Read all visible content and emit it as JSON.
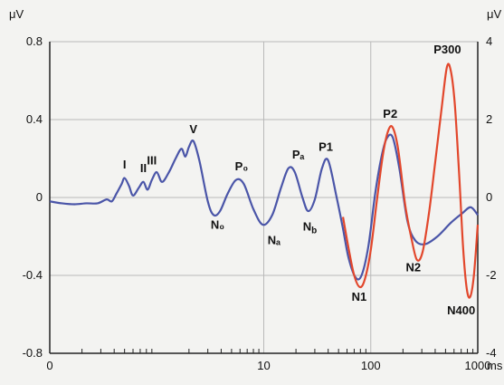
{
  "chart_data": {
    "type": "line",
    "x_scale": "log",
    "x_domain_ms": [
      0.1,
      1000
    ],
    "x_ticks": [
      {
        "value": 0.1,
        "label": "0"
      },
      {
        "value": 10,
        "label": "10"
      },
      {
        "value": 100,
        "label": "100"
      },
      {
        "value": 1000,
        "label": "1000"
      }
    ],
    "x_unit": "ms",
    "left_axis": {
      "unit": "μV",
      "ylim": [
        -0.8,
        0.8
      ],
      "ticks": [
        {
          "value": 0.8,
          "label": "0.8"
        },
        {
          "value": 0.4,
          "label": "0.4"
        },
        {
          "value": 0,
          "label": "0"
        },
        {
          "value": -0.4,
          "label": "-0.4"
        },
        {
          "value": -0.8,
          "label": "-0.8"
        }
      ]
    },
    "right_axis": {
      "unit": "μV",
      "ylim": [
        -4,
        4
      ],
      "ticks": [
        {
          "value": 4,
          "label": "4"
        },
        {
          "value": 2,
          "label": "2"
        },
        {
          "value": 0,
          "label": "0"
        },
        {
          "value": -2,
          "label": "-2"
        },
        {
          "value": -4,
          "label": "-4"
        }
      ]
    },
    "grid": true,
    "series": [
      {
        "color": "#4a55a8",
        "axis": "left",
        "points": [
          [
            0.1,
            -0.02
          ],
          [
            0.13,
            -0.03
          ],
          [
            0.17,
            -0.035
          ],
          [
            0.22,
            -0.03
          ],
          [
            0.28,
            -0.03
          ],
          [
            0.34,
            -0.01
          ],
          [
            0.38,
            -0.02
          ],
          [
            0.42,
            0.02
          ],
          [
            0.47,
            0.07
          ],
          [
            0.5,
            0.1
          ],
          [
            0.55,
            0.06
          ],
          [
            0.6,
            0.01
          ],
          [
            0.68,
            0.05
          ],
          [
            0.75,
            0.08
          ],
          [
            0.82,
            0.04
          ],
          [
            0.9,
            0.09
          ],
          [
            1.0,
            0.13
          ],
          [
            1.12,
            0.08
          ],
          [
            1.3,
            0.13
          ],
          [
            1.5,
            0.2
          ],
          [
            1.7,
            0.25
          ],
          [
            1.85,
            0.21
          ],
          [
            2.0,
            0.26
          ],
          [
            2.2,
            0.29
          ],
          [
            2.5,
            0.19
          ],
          [
            3.0,
            -0.02
          ],
          [
            3.4,
            -0.09
          ],
          [
            3.9,
            -0.07
          ],
          [
            4.6,
            0.02
          ],
          [
            5.5,
            0.09
          ],
          [
            6.5,
            0.07
          ],
          [
            8.0,
            -0.06
          ],
          [
            9.8,
            -0.14
          ],
          [
            12,
            -0.09
          ],
          [
            14.5,
            0.05
          ],
          [
            17,
            0.15
          ],
          [
            19.5,
            0.13
          ],
          [
            23,
            0.0
          ],
          [
            26,
            -0.07
          ],
          [
            30,
            -0.01
          ],
          [
            35,
            0.15
          ],
          [
            40,
            0.19
          ],
          [
            48,
            0.0
          ],
          [
            55,
            -0.16
          ],
          [
            62,
            -0.31
          ],
          [
            72,
            -0.41
          ],
          [
            82,
            -0.4
          ],
          [
            95,
            -0.25
          ],
          [
            110,
            0.02
          ],
          [
            125,
            0.2
          ],
          [
            140,
            0.3
          ],
          [
            160,
            0.31
          ],
          [
            185,
            0.15
          ],
          [
            220,
            -0.12
          ],
          [
            260,
            -0.22
          ],
          [
            320,
            -0.24
          ],
          [
            420,
            -0.2
          ],
          [
            560,
            -0.13
          ],
          [
            720,
            -0.08
          ],
          [
            860,
            -0.05
          ],
          [
            1000,
            -0.09
          ]
        ]
      },
      {
        "color": "#e2472c",
        "axis": "right",
        "points": [
          [
            55,
            -0.5
          ],
          [
            62,
            -1.3
          ],
          [
            70,
            -2.0
          ],
          [
            79,
            -2.3
          ],
          [
            88,
            -2.1
          ],
          [
            100,
            -1.35
          ],
          [
            115,
            0.0
          ],
          [
            130,
            1.1
          ],
          [
            145,
            1.7
          ],
          [
            160,
            1.8
          ],
          [
            180,
            1.25
          ],
          [
            210,
            -0.2
          ],
          [
            240,
            -1.05
          ],
          [
            270,
            -1.6
          ],
          [
            305,
            -1.4
          ],
          [
            350,
            -0.4
          ],
          [
            400,
            0.9
          ],
          [
            460,
            2.3
          ],
          [
            515,
            3.35
          ],
          [
            560,
            3.25
          ],
          [
            610,
            2.4
          ],
          [
            670,
            0.6
          ],
          [
            730,
            -1.3
          ],
          [
            790,
            -2.35
          ],
          [
            850,
            -2.55
          ],
          [
            920,
            -2.0
          ],
          [
            1000,
            -0.7
          ]
        ]
      }
    ],
    "annotations": [
      {
        "text": "I",
        "x": 0.5,
        "y": 0.15
      },
      {
        "text": "II",
        "x": 0.75,
        "y": 0.13
      },
      {
        "text": "III",
        "x": 0.9,
        "y": 0.17
      },
      {
        "text": "V",
        "x": 2.2,
        "y": 0.33
      },
      {
        "text": "N₀",
        "x": 3.7,
        "y": -0.16
      },
      {
        "text": "P₀",
        "x": 6.2,
        "y": 0.14
      },
      {
        "text": "Nₐ",
        "x": 12.5,
        "y": -0.24
      },
      {
        "text": "Pₐ",
        "x": 21,
        "y": 0.2
      },
      {
        "text": "N_b",
        "x": 27,
        "y": -0.17
      },
      {
        "text": "P1",
        "x": 38,
        "y": 0.24
      },
      {
        "text": "N1",
        "x": 78,
        "y": -0.53
      },
      {
        "text": "P2",
        "x": 152,
        "y": 0.41
      },
      {
        "text": "N2",
        "x": 250,
        "y": -0.38
      },
      {
        "text": "P300",
        "x": 520,
        "y": 0.74
      },
      {
        "text": "N400",
        "x": 700,
        "y": -0.6
      }
    ]
  }
}
